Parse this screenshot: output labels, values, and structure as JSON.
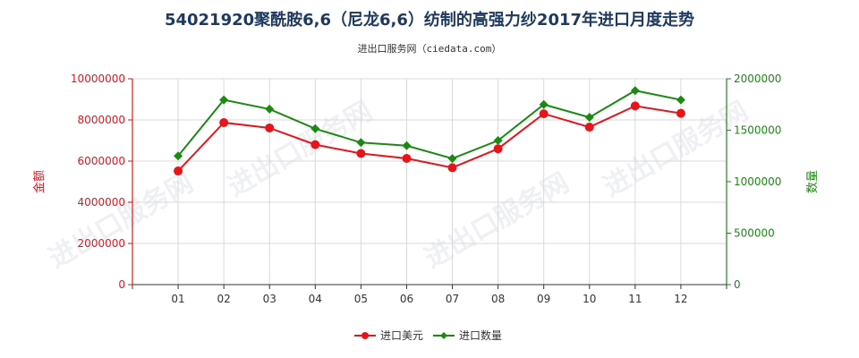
{
  "chart_data": {
    "type": "line",
    "title": "54021920聚酰胺6,6（尼龙6,6）纺制的高强力纱2017年进口月度走势",
    "subtitle": "进出口服务网（ciedata.com）",
    "categories": [
      "01",
      "02",
      "03",
      "04",
      "05",
      "06",
      "07",
      "08",
      "09",
      "10",
      "11",
      "12"
    ],
    "left_axis": {
      "label": "金额",
      "ylim": [
        0,
        10000000
      ],
      "ticks": [
        "0",
        "2000000",
        "4000000",
        "6000000",
        "8000000",
        "10000000"
      ],
      "color": "#e8141c"
    },
    "right_axis": {
      "label": "数量",
      "ylim": [
        0,
        2000000
      ],
      "ticks": [
        "0",
        "500000",
        "1000000",
        "1500000",
        "2000000"
      ],
      "color": "#1a8a12"
    },
    "series": [
      {
        "name": "进口美元",
        "axis": "left",
        "color": "#e8141c",
        "marker": "circle",
        "values": [
          5520000,
          7870000,
          7610000,
          6800000,
          6370000,
          6130000,
          5680000,
          6600000,
          8300000,
          7650000,
          8680000,
          8320000
        ]
      },
      {
        "name": "进口数量",
        "axis": "right",
        "color": "#1a8a12",
        "marker": "diamond",
        "values": [
          1250000,
          1795000,
          1705000,
          1515000,
          1380000,
          1350000,
          1225000,
          1400000,
          1750000,
          1625000,
          1885000,
          1795000
        ]
      }
    ],
    "grid": true,
    "legend_position": "bottom-center",
    "watermark": "进出口服务网"
  }
}
